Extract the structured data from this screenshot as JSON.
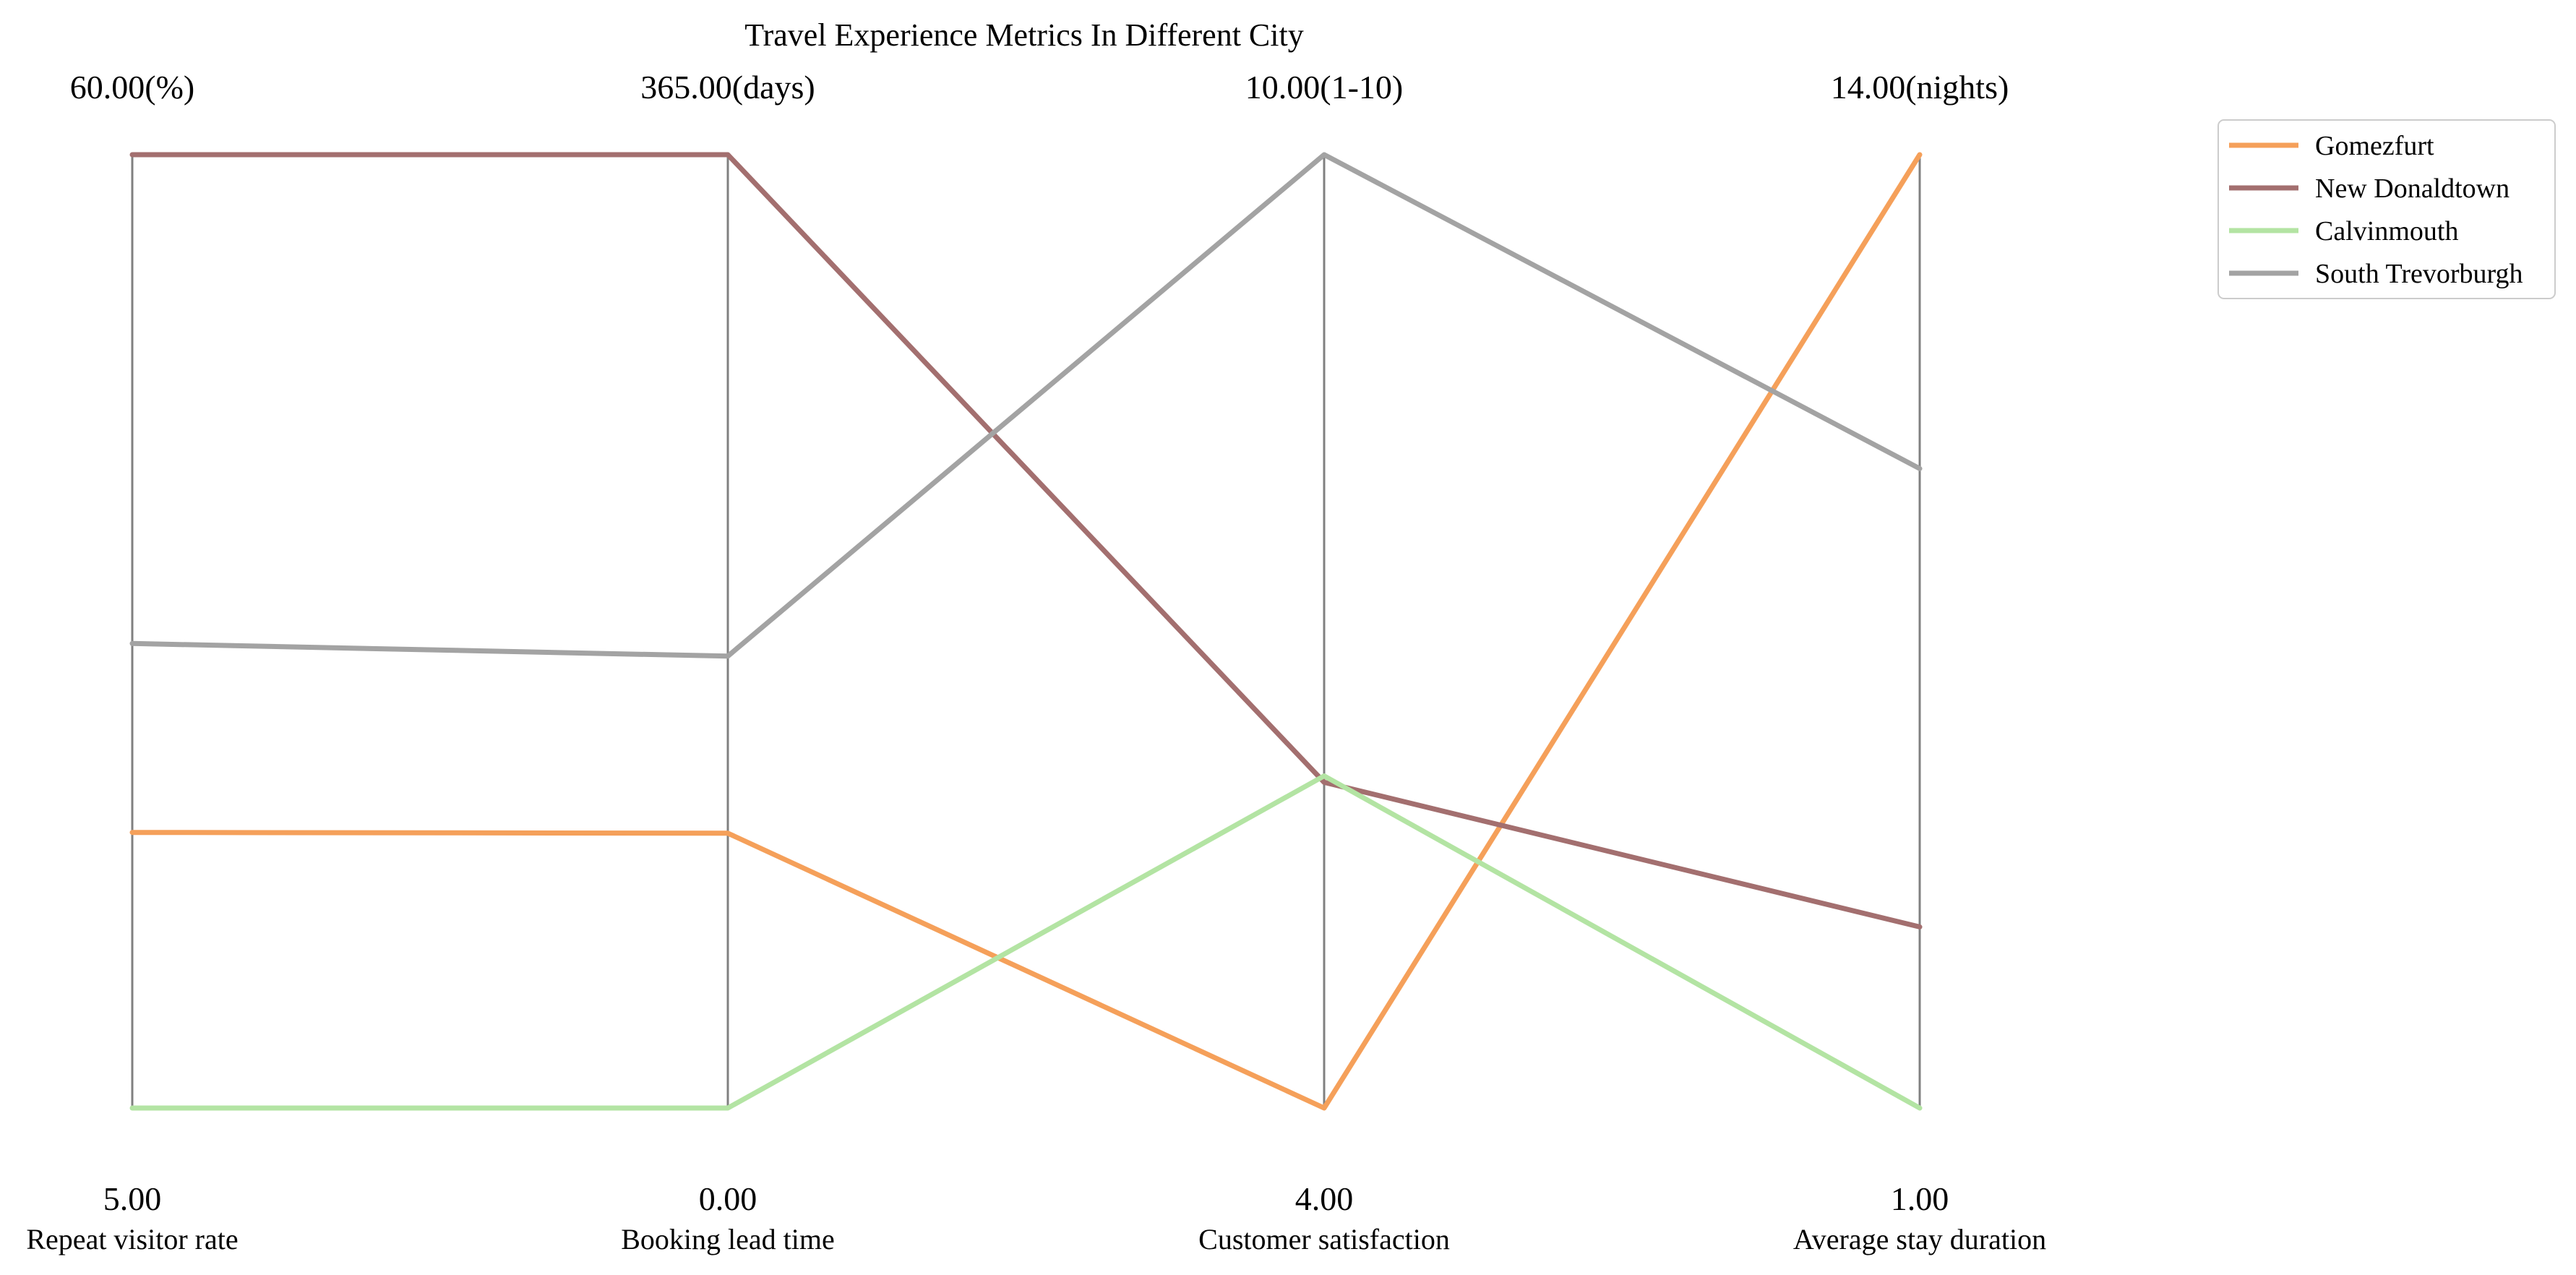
{
  "chart_data": {
    "type": "parallel_coordinates",
    "title": "Travel Experience Metrics In Different City",
    "axes": [
      {
        "name": "Repeat visitor rate",
        "min": 5,
        "max": 60,
        "min_label": "5.00",
        "max_label": "60.00(%)"
      },
      {
        "name": "Booking lead time",
        "min": 0,
        "max": 365,
        "min_label": "0.00",
        "max_label": "365.00(days)"
      },
      {
        "name": "Customer satisfaction",
        "min": 4,
        "max": 10,
        "min_label": "4.00",
        "max_label": "10.00(1-10)"
      },
      {
        "name": "Average stay duration",
        "min": 1,
        "max": 14,
        "min_label": "1.00",
        "max_label": "14.00(nights)"
      }
    ],
    "series": [
      {
        "name": "Gomezfurt",
        "color": "#f5a05a",
        "values": [
          20.9,
          105.2,
          4.0,
          14.0
        ]
      },
      {
        "name": "New Donaldtown",
        "color": "#a36f6f",
        "values": [
          60.0,
          365.0,
          6.05,
          3.47
        ]
      },
      {
        "name": "Calvinmouth",
        "color": "#b3e4a3",
        "values": [
          5.0,
          0.0,
          6.09,
          1.0
        ]
      },
      {
        "name": "South Trevorburgh",
        "color": "#a3a3a3",
        "values": [
          31.8,
          173.0,
          10.0,
          9.72
        ]
      }
    ],
    "legend_position": "top-right",
    "grid": false
  }
}
